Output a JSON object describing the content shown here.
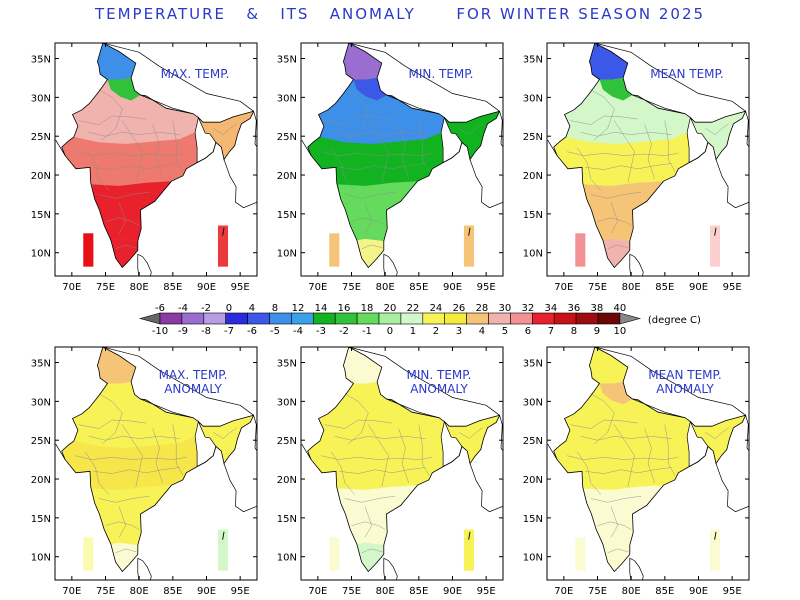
{
  "title": "TEMPERATURE   &   ITS   ANOMALY      FOR WINTER SEASON 2025",
  "x_ticks": [
    "70E",
    "75E",
    "80E",
    "85E",
    "90E",
    "95E"
  ],
  "y_ticks": [
    "35N",
    "30N",
    "25N",
    "20N",
    "15N",
    "10N"
  ],
  "panels": [
    {
      "label1": "MAX. TEMP.",
      "label2": "",
      "row": 0,
      "col": 0,
      "colors": {
        "north": "#3e8fe8",
        "hill": "#31c23c",
        "upper": "#f1b3ad",
        "central": "#ee7a6f",
        "south": "#e8212c",
        "southtip": "#e8212c",
        "east": "#f4b872",
        "island1": "#e81017",
        "island2": "#ec3b3f"
      }
    },
    {
      "label1": "MIN. TEMP.",
      "label2": "",
      "row": 0,
      "col": 1,
      "colors": {
        "north": "#9a6ed1",
        "hill": "#3c58e8",
        "upper": "#3e8fe8",
        "central": "#12b320",
        "south": "#64db5c",
        "southtip": "#f4f48a",
        "east": "#12b320",
        "island1": "#f6c477",
        "island2": "#f6c477"
      }
    },
    {
      "label1": "MEAN TEMP.",
      "label2": "",
      "row": 0,
      "col": 2,
      "colors": {
        "north": "#3c58e8",
        "hill": "#31c23c",
        "upper": "#d3f7c9",
        "central": "#f7f256",
        "south": "#f6c477",
        "southtip": "#f1b3ad",
        "east": "#d3f7c9",
        "island1": "#f29294",
        "island2": "#fbcfcd"
      }
    },
    {
      "label1": "MAX. TEMP.",
      "label2": "ANOMALY",
      "row": 1,
      "col": 0,
      "colors": {
        "north": "#f6c477",
        "hill": "#f7f256",
        "upper": "#f7f256",
        "central": "#f6e64a",
        "south": "#f7f256",
        "southtip": "#fbfbd2",
        "east": "#f7f256",
        "island1": "#fbfbb0",
        "island2": "#d3f7c9"
      }
    },
    {
      "label1": "MIN. TEMP.",
      "label2": "ANOMALY",
      "row": 1,
      "col": 1,
      "colors": {
        "north": "#fbfbd2",
        "hill": "#f7f256",
        "upper": "#f7f256",
        "central": "#f7f256",
        "south": "#fbfbd2",
        "southtip": "#d3f7c9",
        "east": "#f7f256",
        "island1": "#fbfbd2",
        "island2": "#f7f256"
      }
    },
    {
      "label1": "MEAN TEMP.",
      "label2": "ANOMALY",
      "row": 1,
      "col": 2,
      "colors": {
        "north": "#f7f256",
        "hill": "#f6c477",
        "upper": "#f7f256",
        "central": "#f7f256",
        "south": "#fbfbd2",
        "southtip": "#fbfbd2",
        "east": "#f7f256",
        "island1": "#fbfbd2",
        "island2": "#fbfbd2"
      }
    }
  ],
  "colorbar": {
    "top_labels": [
      "-6",
      "-4",
      "-2",
      "0",
      "4",
      "8",
      "12",
      "14",
      "16",
      "18",
      "20",
      "22",
      "24",
      "26",
      "28",
      "30",
      "32",
      "34",
      "36",
      "38",
      "40"
    ],
    "bottom_labels": [
      "-10",
      "-9",
      "-8",
      "-7",
      "-6",
      "-5",
      "-4",
      "-3",
      "-2",
      "-1",
      "0",
      "1",
      "2",
      "3",
      "4",
      "5",
      "6",
      "7",
      "8",
      "9",
      "10"
    ],
    "colors": [
      "#8a3ba3",
      "#9a6ed1",
      "#b59ee4",
      "#2a2bdb",
      "#3c58e8",
      "#3e8fe8",
      "#3aa0e9",
      "#12b320",
      "#31c23c",
      "#64db5c",
      "#a8f0a0",
      "#d3f7c9",
      "#f7f256",
      "#f4ec3c",
      "#f6c477",
      "#f1b3ad",
      "#f29294",
      "#e8212c",
      "#c8101a",
      "#9d0d10",
      "#6b0606"
    ],
    "unit": "(degree C)"
  }
}
